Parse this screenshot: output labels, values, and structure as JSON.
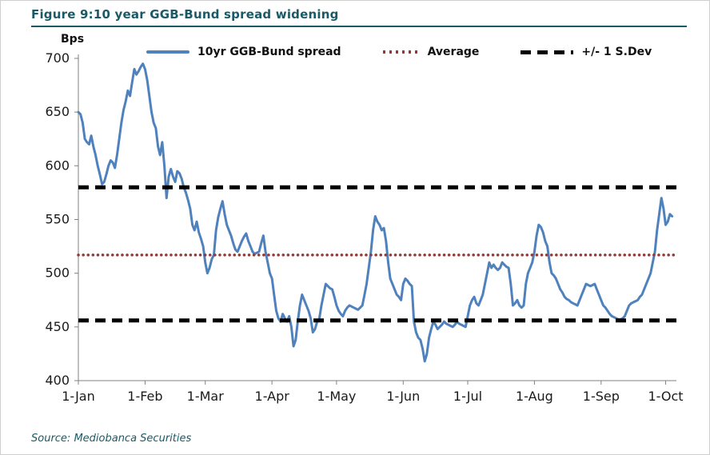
{
  "figure": {
    "title": "Figure 9:10 year GGB-Bund spread widening",
    "source": "Source: Mediobanca Securities"
  },
  "colors": {
    "title_teal": "#1A5A66",
    "spread_line": "#4F81BD",
    "average_line": "#953735",
    "sdev_line": "#000000",
    "axis": "#808080"
  },
  "chart_data": {
    "type": "line",
    "title": "Figure 9:10 year GGB-Bund spread widening",
    "xlabel": "",
    "ylabel": "Bps",
    "ylim": [
      400,
      700
    ],
    "yticks": [
      400,
      450,
      500,
      550,
      600,
      650,
      700
    ],
    "x_range_days": [
      0,
      278
    ],
    "xtick_days": [
      0,
      31,
      59,
      90,
      120,
      151,
      181,
      212,
      243,
      273
    ],
    "xtick_labels": [
      "1-Jan",
      "1-Feb",
      "1-Mar",
      "1-Apr",
      "1-May",
      "1-Jun",
      "1-Jul",
      "1-Aug",
      "1-Sep",
      "1-Oct"
    ],
    "legend": [
      "10yr GGB-Bund spread",
      "Average",
      "+/- 1 S.Dev"
    ],
    "grid": false,
    "legend_position": "top",
    "average": 517,
    "sdev_upper": 580,
    "sdev_lower": 456,
    "series": [
      {
        "name": "10yr GGB-Bund spread",
        "points": [
          [
            0,
            650
          ],
          [
            1,
            648
          ],
          [
            2,
            640
          ],
          [
            3,
            625
          ],
          [
            4,
            622
          ],
          [
            5,
            620
          ],
          [
            6,
            628
          ],
          [
            7,
            618
          ],
          [
            8,
            610
          ],
          [
            9,
            600
          ],
          [
            10,
            592
          ],
          [
            11,
            583
          ],
          [
            12,
            585
          ],
          [
            13,
            592
          ],
          [
            14,
            600
          ],
          [
            15,
            605
          ],
          [
            16,
            603
          ],
          [
            17,
            598
          ],
          [
            18,
            610
          ],
          [
            19,
            625
          ],
          [
            20,
            640
          ],
          [
            21,
            652
          ],
          [
            22,
            660
          ],
          [
            23,
            670
          ],
          [
            24,
            665
          ],
          [
            25,
            678
          ],
          [
            26,
            690
          ],
          [
            27,
            685
          ],
          [
            28,
            688
          ],
          [
            29,
            692
          ],
          [
            30,
            695
          ],
          [
            31,
            690
          ],
          [
            32,
            680
          ],
          [
            33,
            665
          ],
          [
            34,
            650
          ],
          [
            35,
            640
          ],
          [
            36,
            635
          ],
          [
            37,
            618
          ],
          [
            38,
            610
          ],
          [
            39,
            622
          ],
          [
            40,
            600
          ],
          [
            41,
            570
          ],
          [
            42,
            590
          ],
          [
            43,
            597
          ],
          [
            44,
            590
          ],
          [
            45,
            585
          ],
          [
            46,
            595
          ],
          [
            47,
            593
          ],
          [
            48,
            588
          ],
          [
            49,
            580
          ],
          [
            50,
            575
          ],
          [
            51,
            568
          ],
          [
            52,
            560
          ],
          [
            53,
            545
          ],
          [
            54,
            540
          ],
          [
            55,
            548
          ],
          [
            56,
            538
          ],
          [
            57,
            532
          ],
          [
            58,
            525
          ],
          [
            59,
            510
          ],
          [
            60,
            500
          ],
          [
            61,
            505
          ],
          [
            62,
            513
          ],
          [
            63,
            517
          ],
          [
            64,
            540
          ],
          [
            65,
            552
          ],
          [
            66,
            560
          ],
          [
            67,
            567
          ],
          [
            68,
            555
          ],
          [
            69,
            545
          ],
          [
            70,
            540
          ],
          [
            71,
            535
          ],
          [
            72,
            528
          ],
          [
            73,
            522
          ],
          [
            74,
            520
          ],
          [
            75,
            525
          ],
          [
            76,
            530
          ],
          [
            77,
            534
          ],
          [
            78,
            537
          ],
          [
            79,
            530
          ],
          [
            80,
            525
          ],
          [
            81,
            520
          ],
          [
            82,
            518
          ],
          [
            83,
            519
          ],
          [
            84,
            520
          ],
          [
            85,
            528
          ],
          [
            86,
            535
          ],
          [
            87,
            520
          ],
          [
            88,
            510
          ],
          [
            89,
            500
          ],
          [
            90,
            495
          ],
          [
            91,
            480
          ],
          [
            92,
            465
          ],
          [
            93,
            458
          ],
          [
            94,
            455
          ],
          [
            95,
            462
          ],
          [
            96,
            458
          ],
          [
            97,
            455
          ],
          [
            98,
            460
          ],
          [
            99,
            450
          ],
          [
            100,
            432
          ],
          [
            101,
            438
          ],
          [
            102,
            455
          ],
          [
            103,
            470
          ],
          [
            104,
            480
          ],
          [
            105,
            475
          ],
          [
            106,
            470
          ],
          [
            107,
            465
          ],
          [
            108,
            458
          ],
          [
            109,
            445
          ],
          [
            110,
            448
          ],
          [
            111,
            455
          ],
          [
            112,
            458
          ],
          [
            113,
            470
          ],
          [
            114,
            480
          ],
          [
            115,
            490
          ],
          [
            116,
            488
          ],
          [
            117,
            486
          ],
          [
            118,
            485
          ],
          [
            119,
            478
          ],
          [
            120,
            470
          ],
          [
            121,
            465
          ],
          [
            122,
            462
          ],
          [
            123,
            460
          ],
          [
            124,
            465
          ],
          [
            125,
            468
          ],
          [
            126,
            470
          ],
          [
            127,
            469
          ],
          [
            128,
            468
          ],
          [
            129,
            467
          ],
          [
            130,
            466
          ],
          [
            131,
            468
          ],
          [
            132,
            470
          ],
          [
            133,
            480
          ],
          [
            134,
            490
          ],
          [
            135,
            505
          ],
          [
            136,
            520
          ],
          [
            137,
            540
          ],
          [
            138,
            553
          ],
          [
            139,
            548
          ],
          [
            140,
            545
          ],
          [
            141,
            540
          ],
          [
            142,
            542
          ],
          [
            143,
            530
          ],
          [
            144,
            510
          ],
          [
            145,
            495
          ],
          [
            146,
            490
          ],
          [
            147,
            485
          ],
          [
            148,
            480
          ],
          [
            149,
            478
          ],
          [
            150,
            475
          ],
          [
            151,
            490
          ],
          [
            152,
            495
          ],
          [
            153,
            493
          ],
          [
            154,
            490
          ],
          [
            155,
            488
          ],
          [
            156,
            455
          ],
          [
            157,
            445
          ],
          [
            158,
            440
          ],
          [
            159,
            438
          ],
          [
            160,
            430
          ],
          [
            161,
            418
          ],
          [
            162,
            425
          ],
          [
            163,
            440
          ],
          [
            164,
            448
          ],
          [
            165,
            455
          ],
          [
            166,
            452
          ],
          [
            167,
            448
          ],
          [
            168,
            450
          ],
          [
            169,
            452
          ],
          [
            170,
            455
          ],
          [
            171,
            453
          ],
          [
            172,
            452
          ],
          [
            173,
            451
          ],
          [
            174,
            450
          ],
          [
            175,
            452
          ],
          [
            176,
            455
          ],
          [
            177,
            453
          ],
          [
            178,
            452
          ],
          [
            179,
            451
          ],
          [
            180,
            450
          ],
          [
            181,
            460
          ],
          [
            182,
            470
          ],
          [
            183,
            475
          ],
          [
            184,
            478
          ],
          [
            185,
            472
          ],
          [
            186,
            470
          ],
          [
            187,
            475
          ],
          [
            188,
            480
          ],
          [
            189,
            490
          ],
          [
            190,
            500
          ],
          [
            191,
            510
          ],
          [
            192,
            505
          ],
          [
            193,
            508
          ],
          [
            194,
            505
          ],
          [
            195,
            503
          ],
          [
            196,
            505
          ],
          [
            197,
            510
          ],
          [
            198,
            508
          ],
          [
            199,
            506
          ],
          [
            200,
            505
          ],
          [
            201,
            490
          ],
          [
            202,
            470
          ],
          [
            203,
            472
          ],
          [
            204,
            475
          ],
          [
            205,
            470
          ],
          [
            206,
            468
          ],
          [
            207,
            470
          ],
          [
            208,
            490
          ],
          [
            209,
            500
          ],
          [
            210,
            505
          ],
          [
            211,
            510
          ],
          [
            212,
            520
          ],
          [
            213,
            535
          ],
          [
            214,
            545
          ],
          [
            215,
            543
          ],
          [
            216,
            538
          ],
          [
            217,
            530
          ],
          [
            218,
            525
          ],
          [
            219,
            510
          ],
          [
            220,
            500
          ],
          [
            221,
            498
          ],
          [
            222,
            495
          ],
          [
            223,
            490
          ],
          [
            224,
            485
          ],
          [
            225,
            482
          ],
          [
            226,
            478
          ],
          [
            227,
            476
          ],
          [
            228,
            475
          ],
          [
            229,
            473
          ],
          [
            230,
            472
          ],
          [
            231,
            471
          ],
          [
            232,
            470
          ],
          [
            233,
            475
          ],
          [
            234,
            480
          ],
          [
            235,
            485
          ],
          [
            236,
            490
          ],
          [
            237,
            489
          ],
          [
            238,
            488
          ],
          [
            239,
            489
          ],
          [
            240,
            490
          ],
          [
            241,
            485
          ],
          [
            242,
            480
          ],
          [
            243,
            475
          ],
          [
            244,
            470
          ],
          [
            245,
            468
          ],
          [
            246,
            465
          ],
          [
            247,
            462
          ],
          [
            248,
            460
          ],
          [
            249,
            459
          ],
          [
            250,
            458
          ],
          [
            251,
            457
          ],
          [
            252,
            457
          ],
          [
            253,
            458
          ],
          [
            254,
            460
          ],
          [
            255,
            465
          ],
          [
            256,
            470
          ],
          [
            257,
            472
          ],
          [
            258,
            473
          ],
          [
            259,
            474
          ],
          [
            260,
            475
          ],
          [
            261,
            478
          ],
          [
            262,
            480
          ],
          [
            263,
            485
          ],
          [
            264,
            490
          ],
          [
            265,
            495
          ],
          [
            266,
            500
          ],
          [
            267,
            510
          ],
          [
            268,
            520
          ],
          [
            269,
            540
          ],
          [
            270,
            555
          ],
          [
            271,
            570
          ],
          [
            272,
            560
          ],
          [
            273,
            545
          ],
          [
            274,
            548
          ],
          [
            275,
            555
          ],
          [
            276,
            553
          ]
        ]
      }
    ]
  }
}
